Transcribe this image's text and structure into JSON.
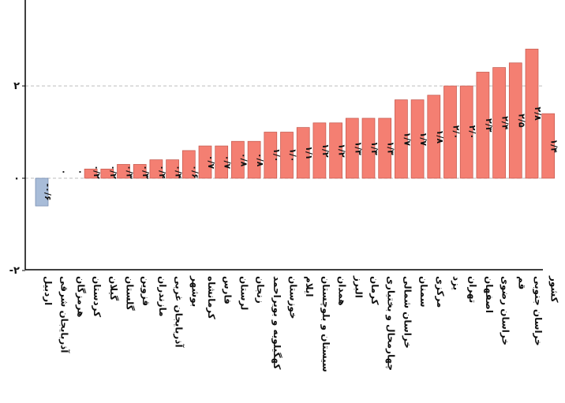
{
  "chart_data": {
    "type": "bar",
    "categories": [
      "اردبیل",
      "آذربایجان شرقی",
      "هرمزگان",
      "کردستان",
      "گیلان",
      "گلستان",
      "قزوین",
      "مازندران",
      "آذربایجان غربی",
      "بوشهر",
      "کرمانشاه",
      "فارس",
      "لرستان",
      "زنجان",
      "کهگیلویه و بویراحمد",
      "خوزستان",
      "ایلام",
      "سیستان و بلوچستان",
      "همدان",
      "البرز",
      "کرمان",
      "چهارمحال و بختیاری",
      "خراسان شمالی",
      "سمنان",
      "مرکزی",
      "یزد",
      "تهران",
      "اصفهان",
      "خراسان رضوی",
      "قم",
      "خراسان جنوبی",
      "کشور"
    ],
    "values": [
      -0.6,
      0.0,
      0.0,
      0.2,
      0.2,
      0.3,
      0.3,
      0.4,
      0.4,
      0.6,
      0.7,
      0.7,
      0.8,
      0.8,
      1.0,
      1.0,
      1.1,
      1.2,
      1.2,
      1.3,
      1.3,
      1.3,
      1.7,
      1.7,
      1.8,
      2.0,
      2.0,
      2.3,
      2.4,
      2.5,
      2.8,
      1.4
    ],
    "value_labels": [
      "-۰/۶",
      "۰",
      "۰",
      "۰/۲",
      "۰/۲",
      "۰/۳",
      "۰/۳",
      "۰/۴",
      "۰/۴",
      "۰/۶",
      "۰/۷",
      "۰/۷",
      "۰/۸",
      "۰/۸",
      "۱/۰",
      "۱/۰",
      "۱/۱",
      "۱/۲",
      "۱/۲",
      "۱/۳",
      "۱/۳",
      "۱/۳",
      "۱/۷",
      "۱/۷",
      "۱/۸",
      "۲/۰",
      "۲/۰",
      "۲/۳",
      "۲/۴",
      "۲/۵",
      "۲/۸",
      "۱/۴"
    ],
    "yticks": [
      -2,
      0,
      2
    ],
    "ytick_labels": [
      "-۲",
      "۰",
      "۲"
    ],
    "ylim": [
      -2,
      3.8
    ],
    "gridlines": [
      0,
      2
    ],
    "colors": {
      "positive": "#f47f72",
      "positive_stroke": "#c2564b",
      "negative": "#a8bcd8",
      "negative_stroke": "#6e86ab",
      "grid": "#bdbdbd",
      "axis": "#000000"
    }
  }
}
